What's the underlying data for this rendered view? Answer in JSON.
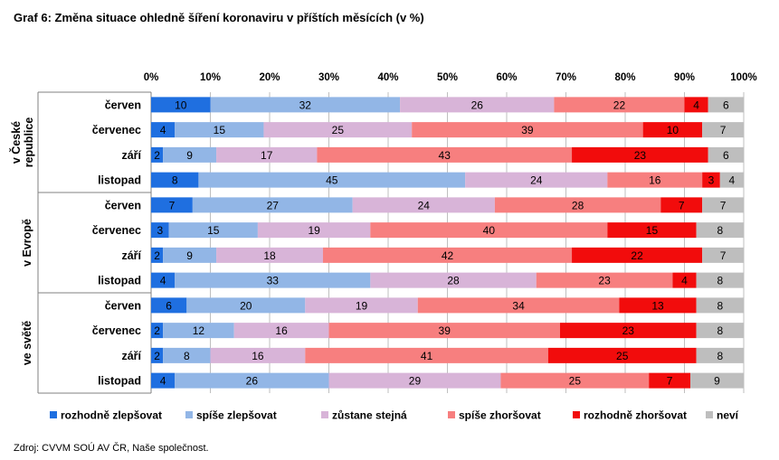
{
  "title": "Graf 6: Změna situace ohledně šíření koronaviru v příštích měsících (v %)",
  "source": "Zdroj: CVVM SOÚ AV ČR, Naše společnost.",
  "chart_data": {
    "type": "bar",
    "orientation": "horizontal",
    "stacked": "percent",
    "x_ticks": [
      "0%",
      "10%",
      "20%",
      "30%",
      "40%",
      "50%",
      "60%",
      "70%",
      "80%",
      "90%",
      "100%"
    ],
    "xlim": [
      0,
      100
    ],
    "grid": true,
    "legend_position": "bottom",
    "groups": [
      {
        "name": "v České republice",
        "label_lines": [
          "v České",
          "republice"
        ],
        "rows": [
          {
            "category": "červen",
            "values": [
              10,
              32,
              26,
              22,
              4,
              6
            ]
          },
          {
            "category": "červenec",
            "values": [
              4,
              15,
              25,
              39,
              10,
              7
            ]
          },
          {
            "category": "září",
            "values": [
              2,
              9,
              17,
              43,
              23,
              6
            ]
          },
          {
            "category": "listopad",
            "values": [
              8,
              45,
              24,
              16,
              3,
              4
            ]
          }
        ]
      },
      {
        "name": "v Evropě",
        "label_lines": [
          "v Evropě"
        ],
        "rows": [
          {
            "category": "červen",
            "values": [
              7,
              27,
              24,
              28,
              7,
              7
            ]
          },
          {
            "category": "červenec",
            "values": [
              3,
              15,
              19,
              40,
              15,
              8
            ]
          },
          {
            "category": "září",
            "values": [
              2,
              9,
              18,
              42,
              22,
              7
            ]
          },
          {
            "category": "listopad",
            "values": [
              4,
              33,
              28,
              23,
              4,
              8
            ]
          }
        ]
      },
      {
        "name": "ve světě",
        "label_lines": [
          "ve světě"
        ],
        "rows": [
          {
            "category": "červen",
            "values": [
              6,
              20,
              19,
              34,
              13,
              8
            ]
          },
          {
            "category": "červenec",
            "values": [
              2,
              12,
              16,
              39,
              23,
              8
            ]
          },
          {
            "category": "září",
            "values": [
              2,
              8,
              16,
              41,
              25,
              8
            ]
          },
          {
            "category": "listopad",
            "values": [
              4,
              26,
              29,
              25,
              7,
              9
            ]
          }
        ]
      }
    ],
    "series": [
      {
        "name": "rozhodně zlepšovat",
        "color": "#1F6FE0"
      },
      {
        "name": "spíše zlepšovat",
        "color": "#92B6E6"
      },
      {
        "name": "zůstane stejná",
        "color": "#D8B4D8"
      },
      {
        "name": "spíše zhoršovat",
        "color": "#F77F7F"
      },
      {
        "name": "rozhodně zhoršovat",
        "color": "#F20C0C"
      },
      {
        "name": "neví",
        "color": "#BEBEBE"
      }
    ]
  }
}
